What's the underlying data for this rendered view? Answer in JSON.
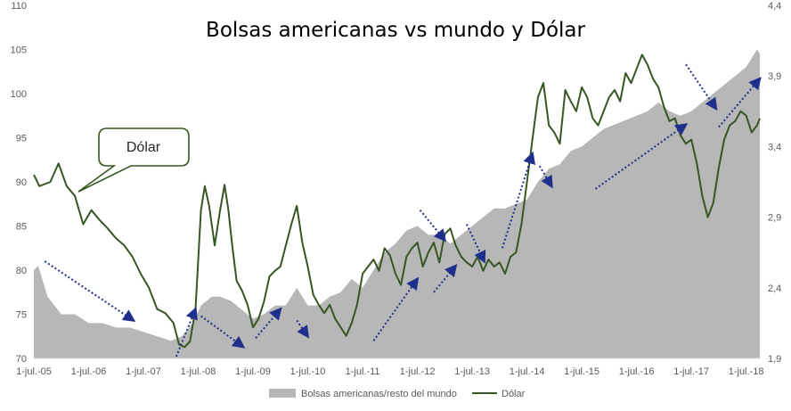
{
  "chart_data": {
    "type": "area+line",
    "title": "Bolsas americanas vs mundo y Dólar",
    "x_tick_labels": [
      "1-jul.-05",
      "1-jul.-06",
      "1-jul.-07",
      "1-jul.-08",
      "1-jul.-09",
      "1-jul.-10",
      "1-jul.-11",
      "1-jul.-12",
      "1-jul.-13",
      "1-jul.-14",
      "1-jul.-15",
      "1-jul.-16",
      "1-jul.-17",
      "1-jul.-18"
    ],
    "x_range": [
      2005.5,
      2018.75
    ],
    "y_left": {
      "ticks": [
        "70",
        "75",
        "80",
        "85",
        "90",
        "95",
        "100",
        "105",
        "110"
      ],
      "range": [
        70,
        110
      ]
    },
    "y_right": {
      "ticks": [
        "1,9",
        "2,4",
        "2,9",
        "3,4",
        "3,9",
        "4,4"
      ],
      "range": [
        1.9,
        4.4
      ]
    },
    "grid": false,
    "legend_position": "bottom",
    "callout": "Dólar",
    "colors": {
      "area": "#B7B7B7",
      "line": "#375623",
      "arrow": "#1F2F8C",
      "callout_border": "#375623"
    },
    "series": [
      {
        "name": "Bolsas americanas/resto del mundo",
        "axis": "left",
        "kind": "area",
        "x": [
          2005.5,
          2005.58,
          2005.75,
          2006.0,
          2006.25,
          2006.5,
          2006.75,
          2007.0,
          2007.25,
          2007.5,
          2007.75,
          2008.0,
          2008.2,
          2008.4,
          2008.55,
          2008.75,
          2008.9,
          2009.1,
          2009.3,
          2009.5,
          2009.7,
          2009.9,
          2010.1,
          2010.3,
          2010.5,
          2010.7,
          2010.9,
          2011.1,
          2011.3,
          2011.5,
          2011.7,
          2011.9,
          2012.1,
          2012.3,
          2012.5,
          2012.7,
          2012.9,
          2013.1,
          2013.3,
          2013.5,
          2013.7,
          2013.9,
          2014.1,
          2014.3,
          2014.5,
          2014.7,
          2014.9,
          2015.1,
          2015.3,
          2015.5,
          2015.7,
          2015.9,
          2016.1,
          2016.3,
          2016.5,
          2016.7,
          2016.9,
          2017.1,
          2017.3,
          2017.5,
          2017.7,
          2017.9,
          2018.1,
          2018.3,
          2018.5,
          2018.6,
          2018.7,
          2018.75
        ],
        "values": [
          80,
          80.5,
          77,
          75,
          75,
          74,
          74,
          73.5,
          73.5,
          73,
          72.5,
          72,
          72.5,
          74,
          76,
          77,
          77,
          76.5,
          75.5,
          74.5,
          75,
          76,
          76,
          78,
          76,
          76,
          77,
          77.5,
          79,
          78,
          80,
          82,
          83,
          84.5,
          85,
          84,
          84,
          83,
          84,
          85,
          86,
          87,
          87,
          87.5,
          88,
          90,
          91.5,
          92,
          93.5,
          94,
          95,
          96,
          96.5,
          97,
          97.5,
          98,
          99,
          98,
          97.5,
          98,
          99,
          100,
          101,
          102,
          103,
          104,
          105,
          104.5
        ]
      },
      {
        "name": "Dólar",
        "axis": "right",
        "kind": "line",
        "x": [
          2005.5,
          2005.6,
          2005.8,
          2005.95,
          2006.1,
          2006.25,
          2006.4,
          2006.55,
          2006.7,
          2006.85,
          2007.0,
          2007.15,
          2007.3,
          2007.45,
          2007.6,
          2007.75,
          2007.9,
          2008.05,
          2008.15,
          2008.25,
          2008.35,
          2008.45,
          2008.55,
          2008.62,
          2008.7,
          2008.8,
          2008.9,
          2008.98,
          2009.05,
          2009.12,
          2009.2,
          2009.3,
          2009.4,
          2009.5,
          2009.6,
          2009.7,
          2009.8,
          2009.9,
          2010.0,
          2010.1,
          2010.2,
          2010.3,
          2010.4,
          2010.5,
          2010.6,
          2010.7,
          2010.8,
          2010.9,
          2011.0,
          2011.1,
          2011.2,
          2011.3,
          2011.4,
          2011.5,
          2011.6,
          2011.7,
          2011.8,
          2011.9,
          2012.0,
          2012.1,
          2012.2,
          2012.3,
          2012.4,
          2012.5,
          2012.6,
          2012.7,
          2012.8,
          2012.9,
          2013.0,
          2013.1,
          2013.2,
          2013.3,
          2013.4,
          2013.5,
          2013.6,
          2013.7,
          2013.8,
          2013.9,
          2014.0,
          2014.1,
          2014.2,
          2014.3,
          2014.4,
          2014.5,
          2014.6,
          2014.7,
          2014.8,
          2014.9,
          2015.0,
          2015.1,
          2015.2,
          2015.3,
          2015.4,
          2015.5,
          2015.6,
          2015.7,
          2015.8,
          2015.9,
          2016.0,
          2016.1,
          2016.2,
          2016.3,
          2016.4,
          2016.5,
          2016.6,
          2016.7,
          2016.8,
          2016.9,
          2017.0,
          2017.1,
          2017.2,
          2017.3,
          2017.4,
          2017.5,
          2017.6,
          2017.7,
          2017.8,
          2017.9,
          2018.0,
          2018.1,
          2018.2,
          2018.3,
          2018.4,
          2018.5,
          2018.6,
          2018.7,
          2018.75
        ],
        "values": [
          3.2,
          3.12,
          3.15,
          3.28,
          3.12,
          3.05,
          2.85,
          2.95,
          2.88,
          2.82,
          2.75,
          2.7,
          2.62,
          2.5,
          2.4,
          2.25,
          2.22,
          2.15,
          2.0,
          1.98,
          2.02,
          2.25,
          2.95,
          3.12,
          2.98,
          2.7,
          2.95,
          3.13,
          2.95,
          2.7,
          2.45,
          2.38,
          2.28,
          2.12,
          2.18,
          2.3,
          2.48,
          2.52,
          2.55,
          2.7,
          2.85,
          2.98,
          2.72,
          2.55,
          2.35,
          2.28,
          2.22,
          2.28,
          2.18,
          2.12,
          2.06,
          2.15,
          2.28,
          2.5,
          2.55,
          2.6,
          2.52,
          2.68,
          2.63,
          2.5,
          2.42,
          2.62,
          2.68,
          2.72,
          2.55,
          2.65,
          2.72,
          2.58,
          2.78,
          2.82,
          2.7,
          2.62,
          2.58,
          2.55,
          2.62,
          2.52,
          2.6,
          2.55,
          2.58,
          2.5,
          2.62,
          2.65,
          2.85,
          3.15,
          3.45,
          3.75,
          3.85,
          3.55,
          3.5,
          3.42,
          3.8,
          3.72,
          3.65,
          3.82,
          3.75,
          3.6,
          3.55,
          3.65,
          3.75,
          3.8,
          3.72,
          3.92,
          3.85,
          3.95,
          4.05,
          3.98,
          3.88,
          3.82,
          3.68,
          3.58,
          3.6,
          3.48,
          3.42,
          3.45,
          3.28,
          3.05,
          2.9,
          3.0,
          3.25,
          3.45,
          3.55,
          3.58,
          3.65,
          3.62,
          3.5,
          3.55,
          3.6
        ]
      }
    ],
    "annotations": {
      "arrows": [
        {
          "from": [
            2005.7,
            81
          ],
          "to": [
            2007.32,
            74.3
          ]
        },
        {
          "from": [
            2008.1,
            70.2
          ],
          "to": [
            2008.45,
            75.6
          ]
        },
        {
          "from": [
            2008.55,
            74.8
          ],
          "to": [
            2009.32,
            71.3
          ]
        },
        {
          "from": [
            2009.55,
            72.3
          ],
          "to": [
            2010.0,
            75.6
          ]
        },
        {
          "from": [
            2010.3,
            74.3
          ],
          "to": [
            2010.5,
            72.5
          ]
        },
        {
          "from": [
            2011.7,
            72
          ],
          "to": [
            2012.5,
            79
          ]
        },
        {
          "from": [
            2012.55,
            86.8
          ],
          "to": [
            2013.0,
            83.4
          ]
        },
        {
          "from": [
            2012.8,
            77.5
          ],
          "to": [
            2013.2,
            80.5
          ]
        },
        {
          "from": [
            2013.4,
            85.2
          ],
          "to": [
            2013.72,
            81
          ]
        },
        {
          "from": [
            2014.05,
            82.5
          ],
          "to": [
            2014.6,
            93.2
          ]
        },
        {
          "from": [
            2014.73,
            91.8
          ],
          "to": [
            2014.95,
            89.5
          ]
        },
        {
          "from": [
            2015.75,
            89.2
          ],
          "to": [
            2017.4,
            96.5
          ]
        },
        {
          "from": [
            2017.4,
            103.3
          ],
          "to": [
            2017.95,
            98.3
          ]
        },
        {
          "from": [
            2018.0,
            96.2
          ],
          "to": [
            2018.75,
            101.7
          ]
        }
      ]
    }
  }
}
